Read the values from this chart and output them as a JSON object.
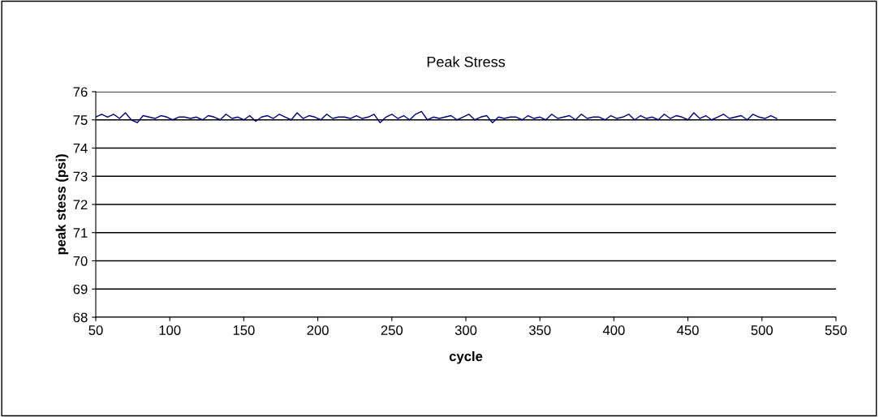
{
  "chart_data": {
    "type": "line",
    "title": "Peak Stress",
    "xlabel": "cycle",
    "ylabel": "peak stess (psi)",
    "x": [
      50,
      54,
      58,
      62,
      66,
      70,
      74,
      78,
      82,
      86,
      90,
      94,
      98,
      102,
      106,
      110,
      114,
      118,
      122,
      126,
      130,
      134,
      138,
      142,
      146,
      150,
      154,
      158,
      162,
      166,
      170,
      174,
      178,
      182,
      186,
      190,
      194,
      198,
      202,
      206,
      210,
      214,
      218,
      222,
      226,
      230,
      234,
      238,
      242,
      246,
      250,
      254,
      258,
      262,
      266,
      270,
      274,
      278,
      282,
      286,
      290,
      294,
      298,
      302,
      306,
      310,
      314,
      318,
      322,
      326,
      330,
      334,
      338,
      342,
      346,
      350,
      354,
      358,
      362,
      366,
      370,
      374,
      378,
      382,
      386,
      390,
      394,
      398,
      402,
      406,
      410,
      414,
      418,
      422,
      426,
      430,
      434,
      438,
      442,
      446,
      450,
      454,
      458,
      462,
      466,
      470,
      474,
      478,
      482,
      486,
      490,
      494,
      498,
      502,
      506,
      510
    ],
    "series": [
      {
        "color": "#000080",
        "values": [
          75.1,
          75.2,
          75.1,
          75.2,
          75.05,
          75.25,
          75.0,
          74.9,
          75.15,
          75.1,
          75.05,
          75.15,
          75.1,
          75.0,
          75.1,
          75.1,
          75.05,
          75.1,
          75.0,
          75.15,
          75.1,
          75.0,
          75.2,
          75.05,
          75.1,
          75.0,
          75.15,
          74.95,
          75.1,
          75.15,
          75.05,
          75.2,
          75.1,
          75.0,
          75.25,
          75.05,
          75.15,
          75.1,
          75.0,
          75.2,
          75.05,
          75.1,
          75.1,
          75.05,
          75.15,
          75.05,
          75.1,
          75.2,
          74.9,
          75.1,
          75.2,
          75.05,
          75.15,
          75.0,
          75.2,
          75.3,
          75.0,
          75.1,
          75.05,
          75.1,
          75.15,
          75.0,
          75.1,
          75.2,
          75.0,
          75.1,
          75.15,
          74.9,
          75.1,
          75.05,
          75.1,
          75.1,
          75.0,
          75.15,
          75.05,
          75.1,
          75.0,
          75.2,
          75.05,
          75.1,
          75.15,
          75.0,
          75.2,
          75.05,
          75.1,
          75.1,
          75.0,
          75.15,
          75.05,
          75.1,
          75.2,
          75.0,
          75.15,
          75.05,
          75.1,
          75.0,
          75.2,
          75.05,
          75.15,
          75.1,
          75.0,
          75.25,
          75.05,
          75.15,
          75.0,
          75.1,
          75.2,
          75.05,
          75.1,
          75.15,
          75.0,
          75.2,
          75.1,
          75.05,
          75.15,
          75.05
        ]
      }
    ],
    "xlim": [
      50,
      550
    ],
    "xticks": [
      50,
      100,
      150,
      200,
      250,
      300,
      350,
      400,
      450,
      500,
      550
    ],
    "ylim": [
      68,
      76
    ],
    "yticks": [
      68,
      69,
      70,
      71,
      72,
      73,
      74,
      75,
      76
    ],
    "grid": "y",
    "legend": false,
    "marker": "none",
    "line_style": "solid"
  }
}
